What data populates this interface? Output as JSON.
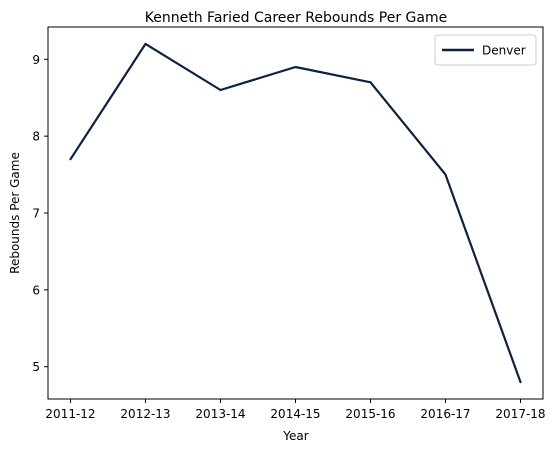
{
  "chart_data": {
    "type": "line",
    "title": "Kenneth Faried Career Rebounds Per Game",
    "xlabel": "Year",
    "ylabel": "Rebounds Per Game",
    "categories": [
      "2011-12",
      "2012-13",
      "2013-14",
      "2014-15",
      "2015-16",
      "2016-17",
      "2017-18"
    ],
    "series": [
      {
        "name": "Denver",
        "values": [
          7.7,
          9.2,
          8.6,
          8.9,
          8.7,
          7.5,
          4.8
        ],
        "color": "#0e2240"
      }
    ],
    "yticks": [
      5,
      6,
      7,
      8,
      9
    ],
    "ylim": [
      4.58,
      9.42
    ],
    "grid": false,
    "legend": "top-right"
  }
}
